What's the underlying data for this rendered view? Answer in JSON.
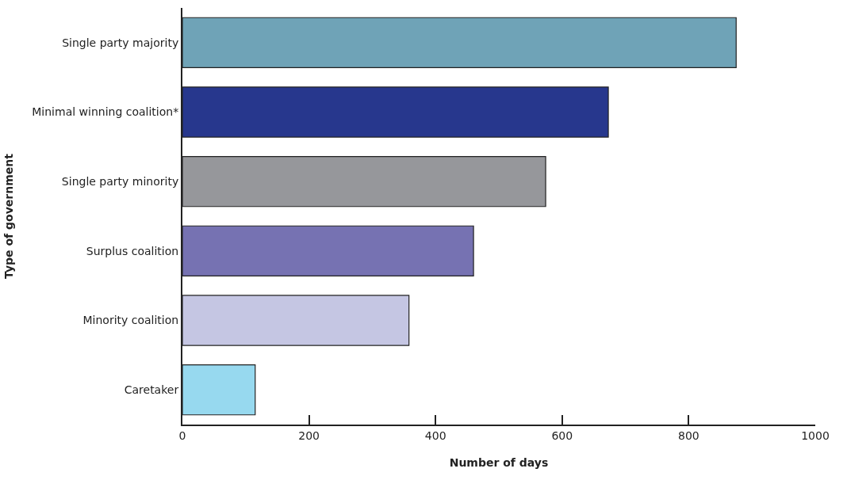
{
  "chart_data": {
    "type": "bar",
    "orientation": "horizontal",
    "xlabel": "Number of days",
    "ylabel": "Type of government",
    "categories": [
      "Single party majority",
      "Minimal winning coalition*",
      "Single party minority",
      "Surplus coalition",
      "Minority coalition",
      "Caretaker"
    ],
    "values": [
      875,
      673,
      574,
      460,
      358,
      115
    ],
    "colors": [
      "#6fa3b7",
      "#27378d",
      "#96979b",
      "#7672b2",
      "#c5c6e3",
      "#97d9ef"
    ],
    "xlim": [
      0,
      1000
    ],
    "xticks": [
      0,
      200,
      400,
      600,
      800,
      1000
    ],
    "legend": false
  }
}
